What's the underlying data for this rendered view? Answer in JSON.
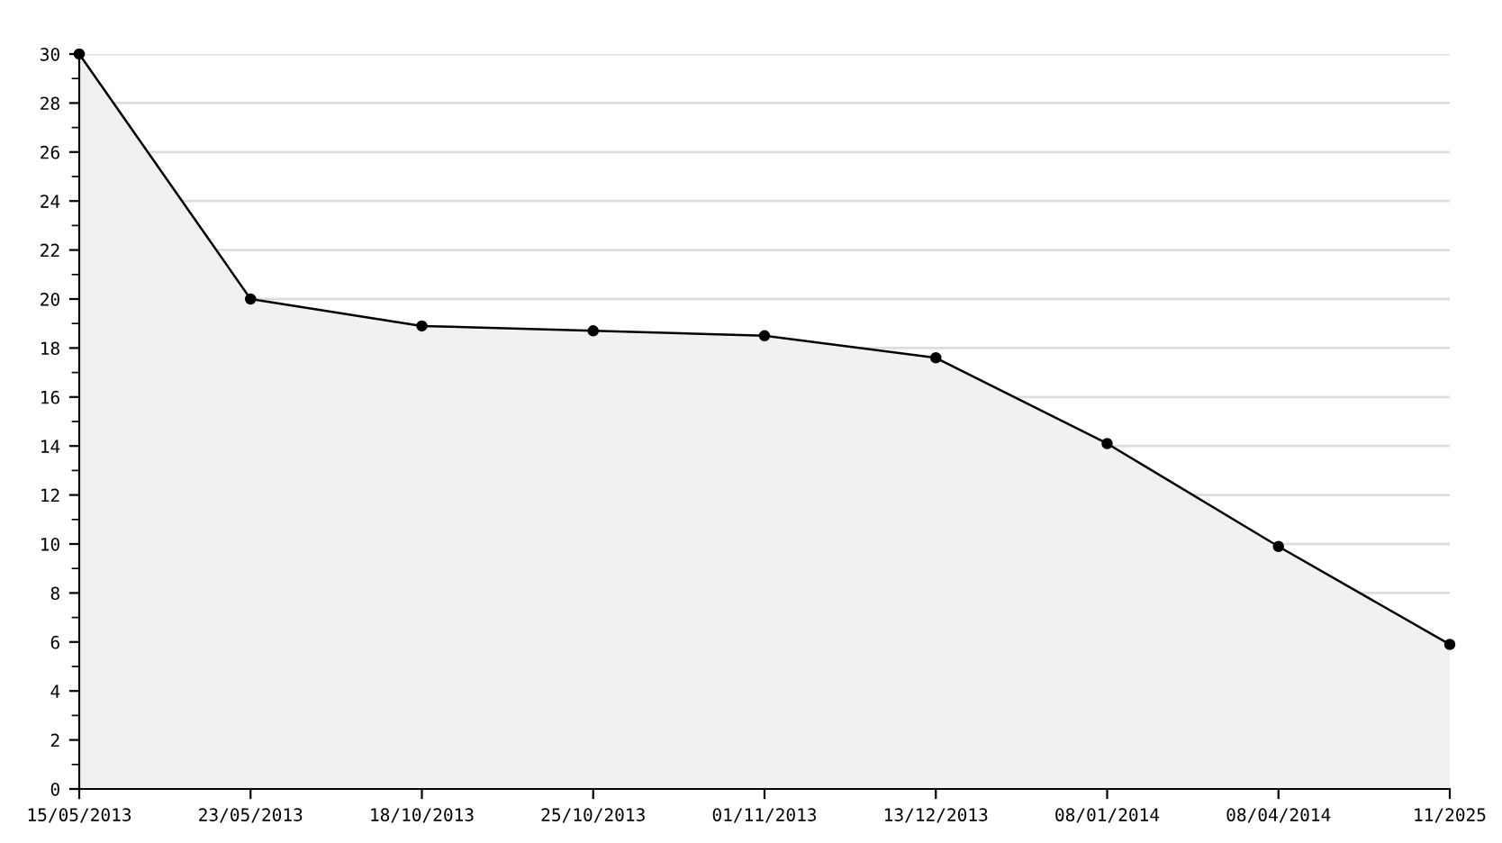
{
  "chart_data": {
    "type": "area",
    "categories": [
      "15/05/2013",
      "23/05/2013",
      "18/10/2013",
      "25/10/2013",
      "01/11/2013",
      "13/12/2013",
      "08/01/2014",
      "08/04/2014",
      "11/2025"
    ],
    "series": [
      {
        "color": "#000000",
        "values": [
          30,
          20,
          18.9,
          18.7,
          18.5,
          17.6,
          14.1,
          9.9,
          5.9
        ]
      }
    ],
    "ylim": [
      0,
      30
    ],
    "yticks": [
      0,
      {
        "value": 1,
        "label": null
      },
      2,
      {
        "value": 3,
        "label": null
      },
      4,
      {
        "value": 5,
        "label": null
      },
      6,
      {
        "value": 7,
        "label": null
      },
      8,
      {
        "value": 9,
        "label": null
      },
      10,
      {
        "value": 11,
        "label": null
      },
      12,
      {
        "value": 13,
        "label": null
      },
      14,
      {
        "value": 15,
        "label": null
      },
      16,
      {
        "value": 17,
        "label": null
      },
      18,
      {
        "value": 19,
        "label": null
      },
      20,
      {
        "value": 21,
        "label": null
      },
      22,
      {
        "value": 23,
        "label": null
      },
      24,
      {
        "value": 25,
        "label": null
      },
      26,
      {
        "value": 27,
        "label": null
      },
      28,
      {
        "value": 29,
        "label": null
      },
      30
    ],
    "grid": "y",
    "marker": "circle",
    "line_style": "solid"
  }
}
